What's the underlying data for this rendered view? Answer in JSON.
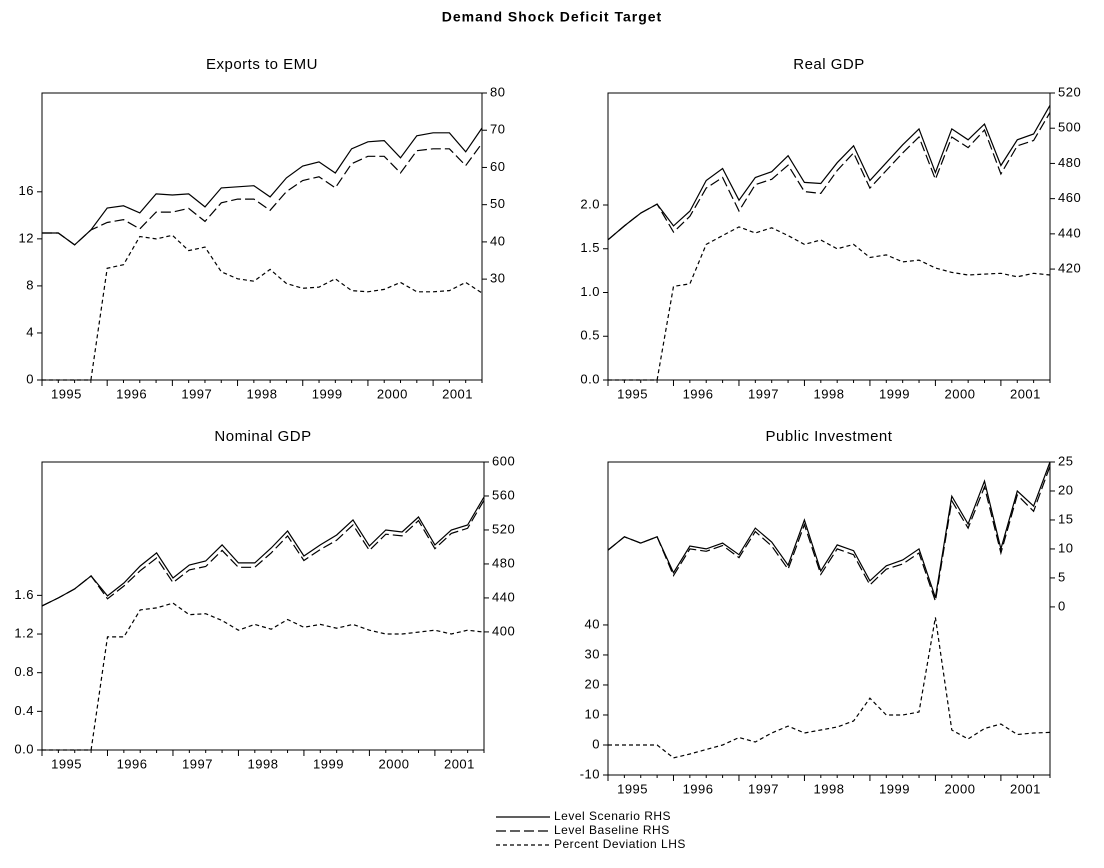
{
  "title": "Demand Shock Deficit Target",
  "chart_data": [
    {
      "type": "line",
      "title": "Exports to EMU",
      "categories": [
        "1995",
        null,
        null,
        null,
        "1996",
        null,
        null,
        null,
        "1997",
        null,
        null,
        null,
        "1998",
        null,
        null,
        null,
        "1999",
        null,
        null,
        null,
        "2000",
        null,
        null,
        null,
        "2001",
        null,
        null,
        null
      ],
      "ylim": [
        0,
        24.4
      ],
      "yticks": [
        0,
        4,
        8,
        12,
        16
      ],
      "y2lim": [
        2.9,
        80
      ],
      "y2ticks": [
        30,
        40,
        50,
        60,
        70,
        80
      ],
      "series": [
        {
          "name": "Level Scenario RHS",
          "color": "#000000",
          "dash": "solid",
          "axis": "y2",
          "values": [
            42.4,
            42.4,
            39.2,
            43.2,
            49.1,
            49.7,
            47.8,
            52.9,
            52.6,
            52.9,
            49.4,
            54.5,
            54.8,
            55.1,
            52.1,
            57.2,
            60.4,
            61.5,
            58.5,
            65,
            66.9,
            67.2,
            62.6,
            68.5,
            69.3,
            69.3,
            64.2,
            70.6
          ]
        },
        {
          "name": "Level Baseline RHS",
          "color": "#000000",
          "dash": "long-dash",
          "axis": "y2",
          "values": [
            42.4,
            42.4,
            39.2,
            43.2,
            45.2,
            46,
            43.5,
            48,
            48,
            49,
            45.5,
            50.5,
            51.5,
            51.5,
            48.5,
            53.5,
            56.5,
            57.5,
            54.5,
            61,
            63,
            63,
            58.5,
            64.5,
            65,
            65,
            60.5,
            66.5
          ]
        },
        {
          "name": "Percent Deviation LHS",
          "color": "#000000",
          "dash": "short-dash",
          "values": [
            0,
            0,
            0,
            0,
            9.5,
            9.8,
            12.2,
            12,
            12.3,
            11,
            11.3,
            9.2,
            8.6,
            8.4,
            9.4,
            8.2,
            7.8,
            7.9,
            8.6,
            7.6,
            7.5,
            7.7,
            8.3,
            7.5,
            7.5,
            7.6,
            8.3,
            7.4
          ]
        }
      ]
    },
    {
      "type": "line",
      "title": "Real GDP",
      "categories": [
        "1995",
        null,
        null,
        null,
        "1996",
        null,
        null,
        null,
        "1997",
        null,
        null,
        null,
        "1998",
        null,
        null,
        null,
        "1999",
        null,
        null,
        null,
        "2000",
        null,
        null,
        null,
        "2001",
        null,
        null,
        null
      ],
      "ylim": [
        0,
        3.28
      ],
      "yticks": [
        {
          "value": 0,
          "label": "0.0"
        },
        0.5,
        {
          "value": 1,
          "label": "1.0"
        },
        1.5,
        {
          "value": 2,
          "label": "2.0"
        }
      ],
      "y2lim": [
        357,
        520
      ],
      "y2ticks": [
        420,
        440,
        460,
        480,
        500,
        520
      ],
      "series": [
        {
          "name": "Level Scenario RHS",
          "color": "#000000",
          "dash": "solid",
          "axis": "y2",
          "values": [
            436.6,
            444.5,
            451.8,
            456.9,
            444.5,
            452.9,
            470.3,
            477.1,
            459.1,
            472,
            475.3,
            484.4,
            469.2,
            468.6,
            480.4,
            490,
            470.3,
            480.4,
            490.6,
            499.6,
            474.8,
            499.6,
            493.4,
            502.4,
            478.8,
            493.4,
            496.7,
            513
          ]
        },
        {
          "name": "Level Baseline RHS",
          "color": "#000000",
          "dash": "long-dash",
          "axis": "y2",
          "values": [
            436.6,
            444.5,
            451.8,
            456.9,
            441,
            450,
            466,
            472,
            453,
            468,
            471,
            479,
            464,
            463,
            476,
            486,
            466,
            476,
            486,
            495,
            471,
            495,
            489,
            499,
            474,
            490,
            493,
            509
          ]
        },
        {
          "name": "Percent Deviation LHS",
          "color": "#000000",
          "dash": "short-dash",
          "values": [
            0,
            0,
            0,
            0,
            1.07,
            1.1,
            1.55,
            1.65,
            1.75,
            1.68,
            1.74,
            1.65,
            1.55,
            1.6,
            1.5,
            1.55,
            1.4,
            1.43,
            1.35,
            1.37,
            1.28,
            1.23,
            1.2,
            1.21,
            1.22,
            1.18,
            1.22,
            1.2
          ]
        }
      ]
    },
    {
      "type": "line",
      "title": "Nominal GDP",
      "categories": [
        "1995",
        null,
        null,
        null,
        "1996",
        null,
        null,
        null,
        "1997",
        null,
        null,
        null,
        "1998",
        null,
        null,
        null,
        "1999",
        null,
        null,
        null,
        "2000",
        null,
        null,
        null,
        "2001",
        null,
        null,
        null
      ],
      "ylim": [
        0,
        2.98
      ],
      "yticks": [
        {
          "value": 0,
          "label": "0.0"
        },
        0.4,
        0.8,
        1.2,
        1.6
      ],
      "y2lim": [
        261,
        600
      ],
      "y2ticks": [
        400,
        440,
        480,
        520,
        560,
        600
      ],
      "series": [
        {
          "name": "Level Scenario RHS",
          "color": "#000000",
          "dash": "solid",
          "axis": "y2",
          "values": [
            430.6,
            440,
            450.6,
            465.9,
            442.4,
            457.6,
            477.6,
            493,
            463.5,
            478.8,
            483.5,
            502.4,
            481.2,
            481.2,
            498.8,
            518.8,
            489.4,
            502.4,
            514.1,
            531.8,
            501.2,
            520,
            517.6,
            535.3,
            502.4,
            520,
            525.9,
            558.8
          ]
        },
        {
          "name": "Level Baseline RHS",
          "color": "#000000",
          "dash": "long-dash",
          "axis": "y2",
          "values": [
            430.6,
            440,
            450.6,
            465.9,
            439,
            454,
            472,
            487,
            458,
            473,
            477,
            496,
            476,
            476,
            493,
            513,
            484,
            497,
            508,
            526,
            496,
            515,
            513,
            531,
            498,
            516,
            522,
            555
          ]
        },
        {
          "name": "Percent Deviation LHS",
          "color": "#000000",
          "dash": "short-dash",
          "values": [
            0,
            0,
            0,
            0,
            1.17,
            1.17,
            1.45,
            1.47,
            1.52,
            1.4,
            1.41,
            1.34,
            1.24,
            1.3,
            1.25,
            1.35,
            1.27,
            1.3,
            1.26,
            1.3,
            1.24,
            1.2,
            1.2,
            1.22,
            1.24,
            1.2,
            1.24,
            1.22
          ]
        }
      ]
    },
    {
      "type": "line",
      "title": "Public Investment",
      "categories": [
        "1995",
        null,
        null,
        null,
        "1996",
        null,
        null,
        null,
        "1997",
        null,
        null,
        null,
        "1998",
        null,
        null,
        null,
        "1999",
        null,
        null,
        null,
        "2000",
        null,
        null,
        null,
        "2001",
        null,
        null,
        null
      ],
      "ylim": [
        -10,
        94.3
      ],
      "yticks": [
        -10,
        0,
        10,
        20,
        30,
        40
      ],
      "y2lim": [
        -29,
        25
      ],
      "y2ticks": [
        0,
        5,
        10,
        15,
        20,
        25
      ],
      "series": [
        {
          "name": "Level Scenario RHS",
          "color": "#000000",
          "dash": "solid",
          "axis": "y2",
          "values": [
            9.8,
            12.1,
            11,
            12.1,
            5.9,
            10.5,
            10,
            11,
            9,
            13.6,
            11.2,
            7.2,
            15,
            6.2,
            10.7,
            9.7,
            4.5,
            7.1,
            8.1,
            10,
            1.6,
            19.1,
            14.3,
            21.7,
            10,
            20,
            17.4,
            25
          ]
        },
        {
          "name": "Level Baseline RHS",
          "color": "#000000",
          "dash": "long-dash",
          "axis": "y2",
          "values": [
            9.8,
            12.1,
            11,
            12.1,
            5.4,
            10,
            9.6,
            10.6,
            8.5,
            13,
            10.5,
            6.5,
            14.2,
            5.6,
            10,
            9,
            3.8,
            6.5,
            7.4,
            9.3,
            1,
            18.3,
            13.6,
            20.7,
            9.3,
            19.3,
            16.5,
            24.3
          ]
        },
        {
          "name": "Percent Deviation LHS",
          "color": "#000000",
          "dash": "short-dash",
          "values": [
            0,
            0,
            0,
            0,
            -4.3,
            -3,
            -1.5,
            0,
            2.5,
            1,
            4,
            6.3,
            4,
            5,
            6,
            8,
            15.6,
            10,
            10,
            11,
            42.5,
            5,
            2,
            5.5,
            7,
            3.5,
            4,
            4.2
          ]
        }
      ]
    }
  ]
}
